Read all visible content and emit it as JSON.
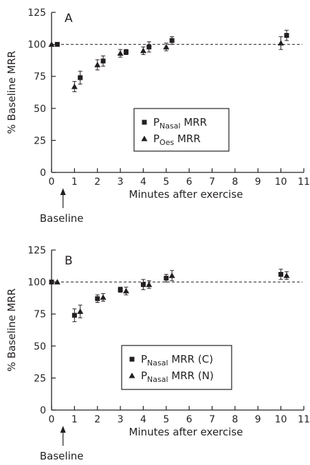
{
  "chart_data": [
    {
      "type": "scatter",
      "panel_label": "A",
      "xlabel": "Minutes after exercise",
      "ylabel": "% Baseline MRR",
      "xlim": [
        0,
        11
      ],
      "ylim": [
        0,
        125
      ],
      "xticks": [
        "0",
        "1",
        "2",
        "3",
        "4",
        "5",
        "6",
        "7",
        "8",
        "9",
        "10",
        "11"
      ],
      "yticks": [
        "0",
        "25",
        "50",
        "75",
        "100",
        "125"
      ],
      "reference_line": 100,
      "annotation": "Baseline",
      "legend_position": "center",
      "series": [
        {
          "name_main": "P",
          "name_sub": "Nasal",
          "name_suffix": " MRR",
          "marker": "square",
          "x": [
            0.25,
            1.25,
            2.25,
            3.25,
            4.25,
            5.25,
            10.25
          ],
          "y": [
            100,
            74,
            87,
            94,
            98,
            103,
            107
          ],
          "err": [
            0,
            5,
            4,
            2,
            4,
            3,
            4
          ]
        },
        {
          "name_main": "P",
          "name_sub": "Oes",
          "name_suffix": " MRR",
          "marker": "triangle",
          "x": [
            0,
            1,
            2,
            3,
            4,
            5,
            10
          ],
          "y": [
            100,
            67,
            84,
            93,
            95,
            98,
            101
          ],
          "err": [
            0,
            4,
            4,
            3,
            3,
            3,
            5
          ]
        }
      ]
    },
    {
      "type": "scatter",
      "panel_label": "B",
      "xlabel": "Minutes after exercise",
      "ylabel": "% Baseline MRR",
      "xlim": [
        0,
        11
      ],
      "ylim": [
        0,
        125
      ],
      "xticks": [
        "0",
        "1",
        "2",
        "3",
        "4",
        "5",
        "6",
        "7",
        "8",
        "9",
        "10",
        "11"
      ],
      "yticks": [
        "0",
        "25",
        "50",
        "75",
        "100",
        "125"
      ],
      "reference_line": 100,
      "annotation": "Baseline",
      "legend_position": "bottom-center",
      "series": [
        {
          "name_main": "P",
          "name_sub": "Nasal",
          "name_suffix": " MRR (C)",
          "marker": "square",
          "x": [
            0,
            1,
            2,
            3,
            4,
            5,
            10
          ],
          "y": [
            100,
            74,
            87,
            94,
            98,
            103,
            106
          ],
          "err": [
            0,
            5,
            3,
            2,
            4,
            3,
            4
          ]
        },
        {
          "name_main": "P",
          "name_sub": "Nasal",
          "name_suffix": " MRR (N)",
          "marker": "triangle",
          "x": [
            0.25,
            1.25,
            2.25,
            3.25,
            4.25,
            5.25,
            10.25
          ],
          "y": [
            100,
            77,
            88,
            93,
            98,
            105,
            105
          ],
          "err": [
            0,
            5,
            3,
            3,
            3,
            4,
            3
          ]
        }
      ]
    }
  ]
}
